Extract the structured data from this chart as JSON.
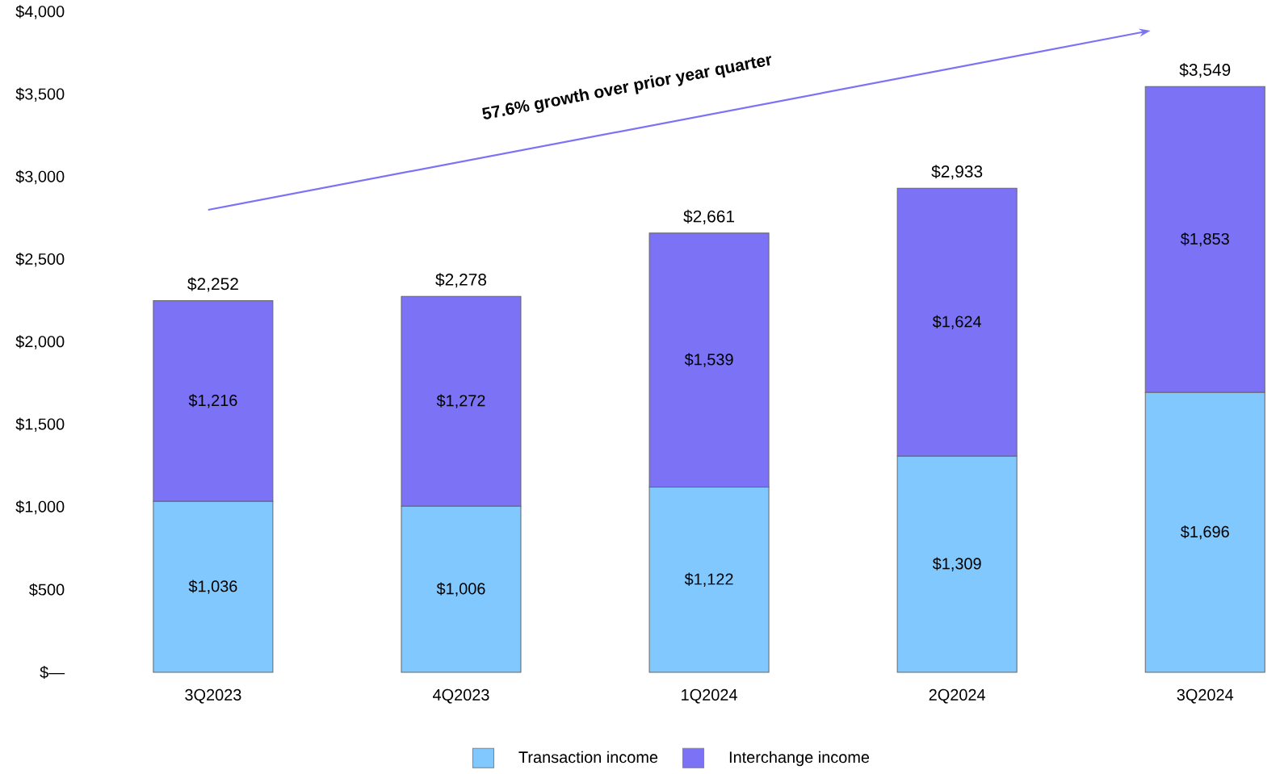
{
  "chart_data": {
    "type": "bar",
    "stacked": true,
    "categories": [
      "3Q2023",
      "4Q2023",
      "1Q2024",
      "2Q2024",
      "3Q2024"
    ],
    "series": [
      {
        "name": "Transaction income",
        "color": "#80c8fd",
        "values": [
          1036,
          1006,
          1122,
          1309,
          1696
        ],
        "value_labels": [
          "$1,036",
          "$1,006",
          "$1,122",
          "$1,309",
          "$1,696"
        ]
      },
      {
        "name": "Interchange income",
        "color": "#7b72f5",
        "values": [
          1216,
          1272,
          1539,
          1624,
          1853
        ],
        "value_labels": [
          "$1,216",
          "$1,272",
          "$1,539",
          "$1,624",
          "$1,853"
        ]
      }
    ],
    "totals": [
      "$2,252",
      "$2,278",
      "$2,661",
      "$2,933",
      "$3,549"
    ],
    "ylim": [
      0,
      4000
    ],
    "yticks": [
      {
        "value": 0,
        "label": "$—"
      },
      {
        "value": 500,
        "label": "$500"
      },
      {
        "value": 1000,
        "label": "$1,000"
      },
      {
        "value": 1500,
        "label": "$1,500"
      },
      {
        "value": 2000,
        "label": "$2,000"
      },
      {
        "value": 2500,
        "label": "$2,500"
      },
      {
        "value": 3000,
        "label": "$3,000"
      },
      {
        "value": 3500,
        "label": "$3,500"
      },
      {
        "value": 4000,
        "label": "$4,000"
      }
    ],
    "legend": "bottom",
    "annotations": [
      "57.6% growth over prior year quarter"
    ]
  }
}
